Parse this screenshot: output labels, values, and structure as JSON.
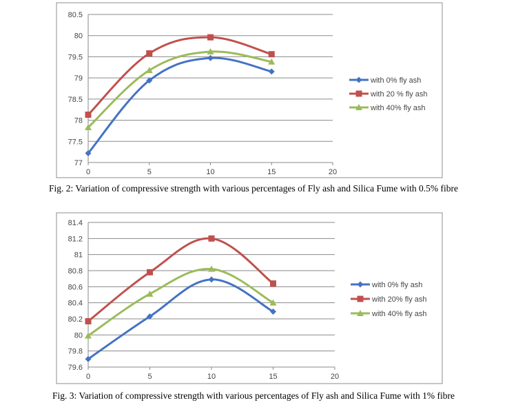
{
  "chart_data": [
    {
      "type": "line",
      "title": "",
      "xlabel": "",
      "ylabel": "",
      "x": [
        0,
        5,
        10,
        15
      ],
      "xlim": [
        0,
        20
      ],
      "xticks": [
        0,
        5,
        10,
        15,
        20
      ],
      "ylim": [
        77,
        80.5
      ],
      "yticks": [
        77,
        77.5,
        78,
        78.5,
        79,
        79.5,
        80,
        80.5
      ],
      "grid": true,
      "legend": "right",
      "series": [
        {
          "name": "with 0% fly ash",
          "values": [
            77.22,
            78.94,
            79.47,
            79.15
          ],
          "color": "#4472C4",
          "marker": "diamond"
        },
        {
          "name": "with 20 % fly ash",
          "values": [
            78.13,
            79.58,
            79.96,
            79.56
          ],
          "color": "#C0504D",
          "marker": "square"
        },
        {
          "name": "with 40% fly ash",
          "values": [
            77.83,
            79.18,
            79.62,
            79.38
          ],
          "color": "#9BBB59",
          "marker": "triangle"
        }
      ],
      "caption": "Fig. 2: Variation of compressive strength with various percentages of Fly ash and Silica Fume with 0.5% fibre"
    },
    {
      "type": "line",
      "title": "",
      "xlabel": "",
      "ylabel": "",
      "x": [
        0,
        5,
        10,
        15
      ],
      "xlim": [
        0,
        20
      ],
      "xticks": [
        0,
        5,
        10,
        15,
        20
      ],
      "ylim": [
        79.6,
        81.4
      ],
      "yticks": [
        79.6,
        79.8,
        80,
        80.2,
        80.4,
        80.6,
        80.8,
        81,
        81.2,
        81.4
      ],
      "grid": true,
      "legend": "right",
      "series": [
        {
          "name": "with 0% fly ash",
          "values": [
            79.7,
            80.23,
            80.69,
            80.29
          ],
          "color": "#4472C4",
          "marker": "diamond"
        },
        {
          "name": "with 20% fly ash",
          "values": [
            80.17,
            80.78,
            81.2,
            80.64
          ],
          "color": "#C0504D",
          "marker": "square"
        },
        {
          "name": "with 40% fly ash",
          "values": [
            79.99,
            80.51,
            80.82,
            80.4
          ],
          "color": "#9BBB59",
          "marker": "triangle"
        }
      ],
      "caption": "Fig. 3: Variation of compressive strength with various percentages of Fly ash and Silica Fume with 1% fibre"
    }
  ]
}
